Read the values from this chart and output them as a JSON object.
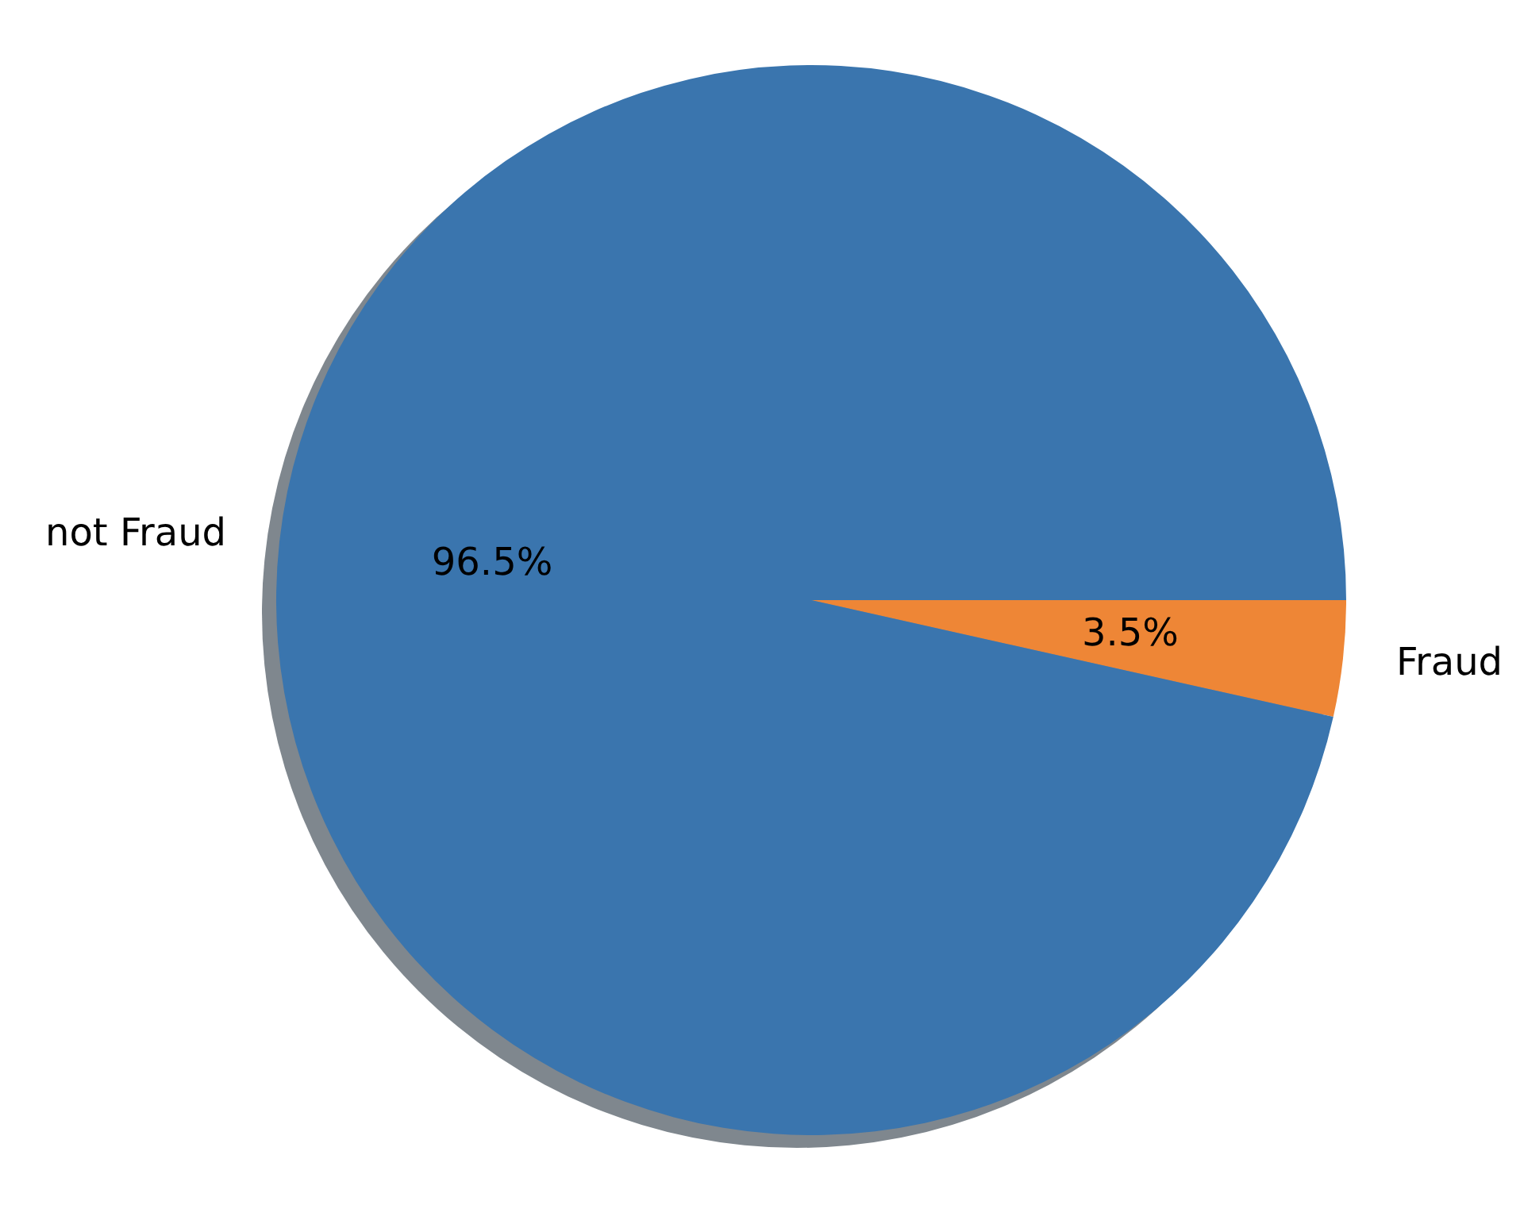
{
  "chart_data": {
    "type": "pie",
    "categories": [
      "not Fraud",
      "Fraud"
    ],
    "values": [
      96.5,
      3.5
    ],
    "colors": [
      "#3a75ae",
      "#ee8636"
    ],
    "value_labels": [
      "96.5%",
      "3.5%"
    ],
    "legend": false
  }
}
